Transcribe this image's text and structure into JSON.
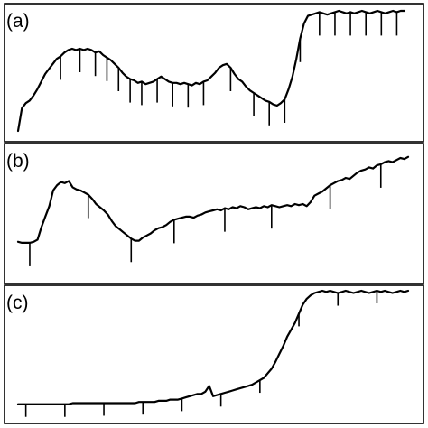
{
  "chart_data": [
    {
      "type": "line",
      "panel_label": "(a)",
      "xlim": [
        0,
        100
      ],
      "ylim": [
        0,
        100
      ],
      "grid": false,
      "axes_labels_shown": false,
      "series": [
        {
          "x": [
            0,
            1,
            2,
            3,
            4,
            5,
            6,
            7,
            8,
            9,
            10,
            11,
            12,
            13,
            14,
            15,
            16,
            17,
            18,
            19,
            20,
            21,
            22,
            23,
            24,
            25,
            26,
            27,
            28,
            29,
            30,
            31,
            32,
            33,
            34,
            35,
            36,
            37,
            38,
            39,
            40,
            41,
            42,
            43,
            44,
            45,
            46,
            47,
            48,
            49,
            50,
            51,
            52,
            53,
            54,
            55,
            56,
            57,
            58,
            59,
            60,
            61,
            62,
            63,
            64,
            65,
            66,
            67,
            68,
            69,
            70,
            71,
            72,
            73,
            74,
            75,
            76,
            77,
            78,
            79,
            80,
            81,
            82,
            83,
            84,
            85,
            86,
            87,
            88,
            89,
            90,
            91,
            92,
            93,
            94,
            95,
            96,
            97,
            98,
            99,
            100
          ],
          "values": [
            5,
            23,
            27,
            29,
            33,
            38,
            44,
            50,
            54,
            58,
            62,
            64,
            67,
            69,
            70,
            69,
            70,
            69,
            70,
            69,
            67,
            68,
            65,
            63,
            61,
            58,
            55,
            51,
            48,
            46,
            45,
            43,
            44,
            42,
            43,
            44,
            46,
            48,
            46,
            44,
            43,
            43,
            42,
            43,
            42,
            41,
            43,
            42,
            44,
            45,
            48,
            51,
            55,
            57,
            58,
            55,
            50,
            46,
            44,
            40,
            37,
            35,
            33,
            31,
            29,
            28,
            26,
            25,
            27,
            30,
            38,
            48,
            62,
            78,
            90,
            96,
            97,
            98,
            99,
            98,
            97,
            98,
            99,
            100,
            99,
            98,
            99,
            98,
            99,
            100,
            99,
            98,
            99,
            100,
            99,
            98,
            99,
            100,
            99,
            100,
            100
          ]
        }
      ],
      "tick_marks_x": [
        11,
        16,
        20,
        23,
        26,
        29,
        32,
        36,
        40,
        44,
        48,
        55,
        61,
        65,
        69,
        73,
        78,
        82,
        86,
        90,
        94,
        98
      ]
    },
    {
      "type": "line",
      "panel_label": "(b)",
      "xlim": [
        0,
        100
      ],
      "ylim": [
        0,
        100
      ],
      "grid": false,
      "axes_labels_shown": false,
      "series": [
        {
          "x": [
            0,
            1,
            2,
            3,
            4,
            5,
            6,
            7,
            8,
            9,
            10,
            11,
            12,
            13,
            14,
            15,
            16,
            17,
            18,
            19,
            20,
            21,
            22,
            23,
            24,
            25,
            26,
            27,
            28,
            29,
            30,
            31,
            32,
            33,
            34,
            35,
            36,
            37,
            38,
            39,
            40,
            41,
            42,
            43,
            44,
            45,
            46,
            47,
            48,
            49,
            50,
            51,
            52,
            53,
            54,
            55,
            56,
            57,
            58,
            59,
            60,
            61,
            62,
            63,
            64,
            65,
            66,
            67,
            68,
            69,
            70,
            71,
            72,
            73,
            74,
            75,
            76,
            77,
            78,
            79,
            80,
            81,
            82,
            83,
            84,
            85,
            86,
            87,
            88,
            89,
            90,
            91,
            92,
            93,
            94,
            95,
            96,
            97,
            98,
            99,
            100
          ],
          "values": [
            14,
            13,
            13,
            13,
            14,
            16,
            28,
            38,
            48,
            63,
            68,
            71,
            70,
            72,
            66,
            64,
            63,
            61,
            59,
            55,
            50,
            47,
            44,
            40,
            34,
            29,
            26,
            23,
            20,
            17,
            15,
            15,
            18,
            20,
            22,
            25,
            27,
            28,
            30,
            33,
            35,
            36,
            37,
            38,
            38,
            37,
            39,
            40,
            42,
            43,
            44,
            45,
            44,
            46,
            45,
            47,
            46,
            48,
            47,
            45,
            46,
            47,
            46,
            48,
            47,
            49,
            48,
            47,
            48,
            49,
            48,
            50,
            49,
            50,
            48,
            52,
            58,
            60,
            62,
            65,
            68,
            70,
            72,
            73,
            75,
            74,
            77,
            80,
            82,
            83,
            85,
            84,
            87,
            88,
            90,
            91,
            90,
            92,
            94,
            93,
            95
          ]
        }
      ],
      "tick_marks_x": [
        3,
        18,
        29,
        40,
        53,
        65,
        80,
        93
      ]
    },
    {
      "type": "line",
      "panel_label": "(c)",
      "xlim": [
        0,
        100
      ],
      "ylim": [
        0,
        100
      ],
      "grid": false,
      "axes_labels_shown": false,
      "series": [
        {
          "x": [
            0,
            1,
            2,
            3,
            4,
            5,
            6,
            7,
            8,
            9,
            10,
            11,
            12,
            13,
            14,
            15,
            16,
            17,
            18,
            19,
            20,
            21,
            22,
            23,
            24,
            25,
            26,
            27,
            28,
            29,
            30,
            31,
            32,
            33,
            34,
            35,
            36,
            37,
            38,
            39,
            40,
            41,
            42,
            43,
            44,
            45,
            46,
            47,
            48,
            49,
            50,
            51,
            52,
            53,
            54,
            55,
            56,
            57,
            58,
            59,
            60,
            61,
            62,
            63,
            64,
            65,
            66,
            67,
            68,
            69,
            70,
            71,
            72,
            73,
            74,
            75,
            76,
            77,
            78,
            79,
            80,
            81,
            82,
            83,
            84,
            85,
            86,
            87,
            88,
            89,
            90,
            91,
            92,
            93,
            94,
            95,
            96,
            97,
            98,
            99,
            100
          ],
          "values": [
            1,
            1,
            1,
            1,
            1,
            1,
            1,
            1,
            1,
            1,
            1,
            1,
            1,
            1,
            2,
            2,
            2,
            2,
            2,
            2,
            2,
            2,
            2,
            2,
            2,
            2,
            2,
            2,
            2,
            2,
            2,
            3,
            3,
            3,
            3,
            3,
            4,
            4,
            4,
            5,
            5,
            5,
            6,
            7,
            8,
            9,
            10,
            10,
            12,
            17,
            8,
            9,
            10,
            11,
            12,
            13,
            14,
            15,
            16,
            17,
            18,
            20,
            22,
            24,
            28,
            32,
            38,
            45,
            52,
            60,
            66,
            72,
            80,
            88,
            93,
            96,
            98,
            99,
            100,
            99,
            100,
            99,
            98,
            99,
            100,
            99,
            98,
            99,
            100,
            99,
            98,
            99,
            100,
            99,
            100,
            99,
            98,
            99,
            100,
            99,
            100
          ]
        }
      ],
      "tick_marks_x": [
        2,
        12,
        22,
        32,
        42,
        52,
        62,
        72,
        82,
        92
      ]
    }
  ]
}
